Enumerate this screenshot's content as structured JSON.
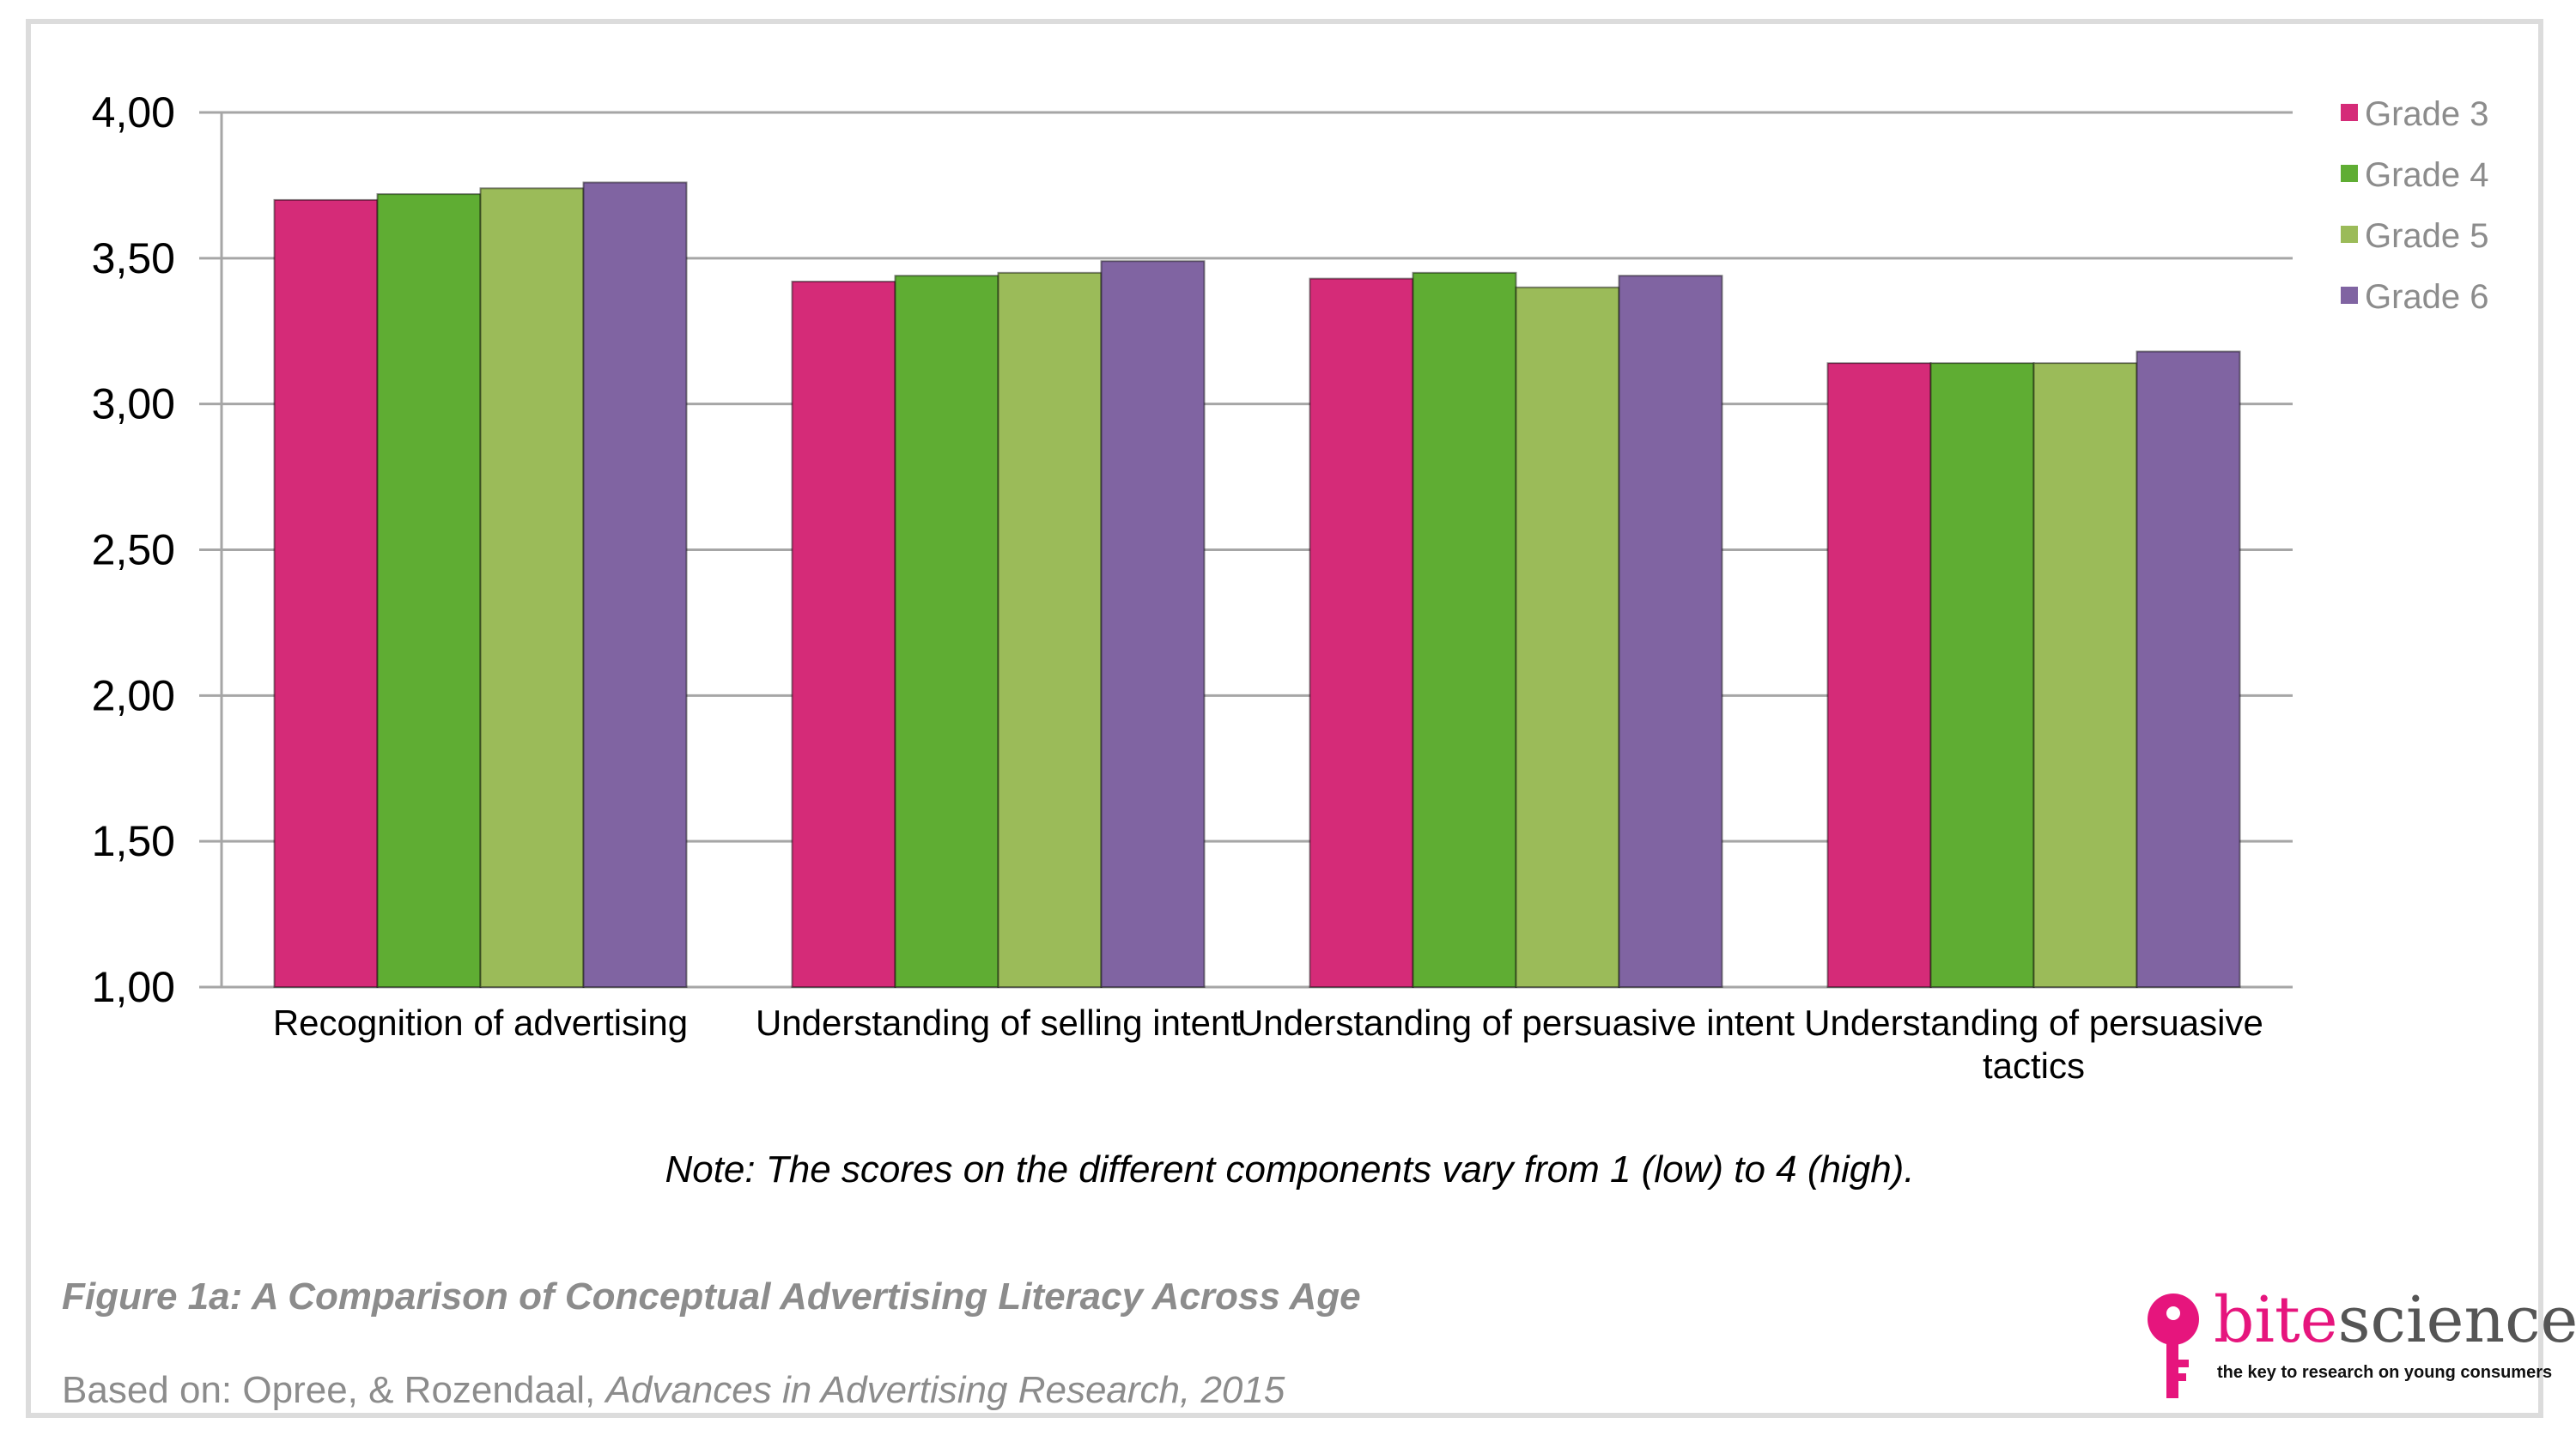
{
  "chart_data": {
    "type": "bar",
    "categories": [
      "Recognition of advertising",
      "Understanding of selling intent",
      "Understanding of persuasive intent",
      "Understanding of persuasive tactics"
    ],
    "series": [
      {
        "name": "Grade 3",
        "color": "#d52b78",
        "values": [
          3.7,
          3.42,
          3.43,
          3.14
        ]
      },
      {
        "name": "Grade 4",
        "color": "#5fad33",
        "values": [
          3.72,
          3.44,
          3.45,
          3.14
        ]
      },
      {
        "name": "Grade 5",
        "color": "#9bbb59",
        "values": [
          3.74,
          3.45,
          3.4,
          3.14
        ]
      },
      {
        "name": "Grade 6",
        "color": "#8064a2",
        "values": [
          3.76,
          3.49,
          3.44,
          3.18
        ]
      }
    ],
    "ylim": [
      1.0,
      4.0
    ],
    "yticks": [
      "1,00",
      "1,50",
      "2,00",
      "2,50",
      "3,00",
      "3,50",
      "4,00"
    ],
    "grid": true,
    "legend_position": "top-right"
  },
  "note": "Note: The scores on the different components vary from 1 (low) to 4 (high).",
  "figure_title": "Figure 1a: A Comparison of Conceptual Advertising Literacy Across Age",
  "source": {
    "prefix": "Based on: Opree, & Rozendaal, ",
    "publication": "Advances in Advertising Research, 2015"
  },
  "logo": {
    "brand_part1": "bite",
    "brand_part2": "science",
    "tagline": "the key to research on young consumers",
    "icon": "key-icon",
    "accent_color": "#e6157d"
  }
}
